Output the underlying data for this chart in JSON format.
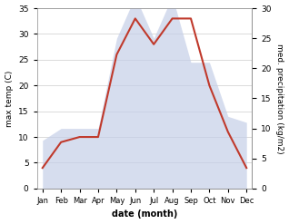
{
  "months": [
    "Jan",
    "Feb",
    "Mar",
    "Apr",
    "May",
    "Jun",
    "Jul",
    "Aug",
    "Sep",
    "Oct",
    "Nov",
    "Dec"
  ],
  "temperature": [
    4,
    9,
    10,
    10,
    26,
    33,
    28,
    33,
    33,
    20,
    11,
    4
  ],
  "precipitation": [
    8,
    10,
    10,
    10,
    25,
    32,
    25,
    32,
    21,
    21,
    12,
    11
  ],
  "temp_color": "#c0392b",
  "precip_color_fill": "#c5cfe8",
  "xlabel": "date (month)",
  "ylabel_left": "max temp (C)",
  "ylabel_right": "med. precipitation (kg/m2)",
  "ylim_left": [
    0,
    35
  ],
  "ylim_right": [
    0,
    30
  ],
  "yticks_left": [
    0,
    5,
    10,
    15,
    20,
    25,
    30,
    35
  ],
  "yticks_right": [
    0,
    5,
    10,
    15,
    20,
    25,
    30
  ],
  "background_color": "#ffffff",
  "grid_color": "#cccccc",
  "temp_linewidth": 1.5,
  "fill_alpha": 0.7
}
